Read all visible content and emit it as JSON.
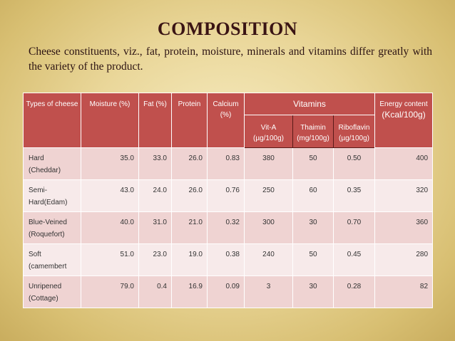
{
  "title": "COMPOSITION",
  "intro": "Cheese constituents, viz., fat, protein, moisture, minerals and vitamins differ greatly with the variety of the product.",
  "table": {
    "headers": {
      "type": "Types of cheese",
      "moisture": "Moisture (%)",
      "fat": "Fat (%)",
      "protein": "Protein",
      "calcium": "Calcium (%)",
      "vitamins": "Vitamins",
      "vita": "Vit-A (µg/100g)",
      "thaimin": "Thaimin (mg/100g)",
      "riboflavin": "Riboflavin (µg/100g)",
      "energy_a": "Energy content",
      "energy_b": "(Kcal/100g)"
    },
    "rows": [
      {
        "type": "Hard (Cheddar)",
        "moisture": "35.0",
        "fat": "33.0",
        "protein": "26.0",
        "calcium": "0.83",
        "vita": "380",
        "thaimin": "50",
        "riboflavin": "0.50",
        "energy": "400"
      },
      {
        "type": "Semi-Hard(Edam)",
        "moisture": "43.0",
        "fat": "24.0",
        "protein": "26.0",
        "calcium": "0.76",
        "vita": "250",
        "thaimin": "60",
        "riboflavin": "0.35",
        "energy": "320"
      },
      {
        "type": "Blue-Veined (Roquefort)",
        "moisture": "40.0",
        "fat": "31.0",
        "protein": "21.0",
        "calcium": "0.32",
        "vita": "300",
        "thaimin": "30",
        "riboflavin": "0.70",
        "energy": "360"
      },
      {
        "type": "Soft (camembert",
        "moisture": "51.0",
        "fat": "23.0",
        "protein": "19.0",
        "calcium": "0.38",
        "vita": "240",
        "thaimin": "50",
        "riboflavin": "0.45",
        "energy": "280"
      },
      {
        "type": "Unripened (Cottage)",
        "moisture": "79.0",
        "fat": "0.4",
        "protein": "16.9",
        "calcium": "0.09",
        "vita": "3",
        "thaimin": "30",
        "riboflavin": "0.28",
        "energy": "82"
      }
    ]
  }
}
